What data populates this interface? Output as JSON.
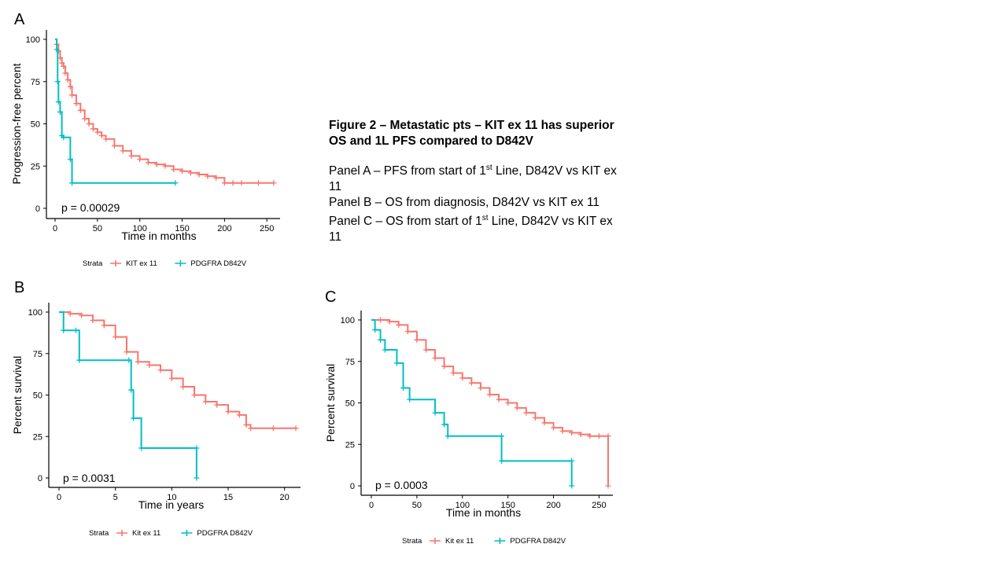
{
  "figure": {
    "title": "Figure 2 – Metastatic pts – KIT ex 11 has superior OS and 1L PFS compared to D842V",
    "captions": [
      {
        "pre": "Panel A – PFS from start of 1",
        "sup": "st",
        "post": " Line, D842V vs KIT ex 11"
      },
      {
        "pre": "Panel B – OS from diagnosis, D842V vs KIT ex 11",
        "sup": "",
        "post": ""
      },
      {
        "pre": "Panel C – OS from start of 1",
        "sup": "st",
        "post": " Line, D842V vs KIT ex 11"
      }
    ]
  },
  "chart_data": [
    {
      "panel": "A",
      "type": "line",
      "xlabel": "Time in months",
      "ylabel": "Progression-free percent",
      "xlim": [
        0,
        260
      ],
      "ylim": [
        0,
        100
      ],
      "xticks": [
        0,
        50,
        100,
        150,
        200,
        250
      ],
      "yticks": [
        0,
        25,
        50,
        75,
        100
      ],
      "p_value": "p = 0.00029",
      "legend_title": "Strata",
      "legend_position": "bottom",
      "series": [
        {
          "name": "KIT ex 11",
          "color": "#F8766D",
          "x": [
            0,
            2,
            4,
            6,
            8,
            10,
            12,
            15,
            18,
            20,
            25,
            30,
            35,
            40,
            45,
            50,
            55,
            60,
            70,
            80,
            90,
            100,
            110,
            120,
            130,
            140,
            150,
            160,
            170,
            180,
            190,
            200,
            210,
            220,
            240,
            258
          ],
          "y": [
            100,
            97,
            93,
            89,
            86,
            84,
            80,
            76,
            72,
            67,
            62,
            58,
            53,
            50,
            47,
            45,
            43,
            41,
            37,
            34,
            31,
            29,
            27,
            26,
            25,
            23,
            22,
            21,
            20,
            19,
            18,
            15,
            15,
            15,
            15,
            15
          ]
        },
        {
          "name": "PDGFRA D842V",
          "color": "#00BFC4",
          "x": [
            0,
            2,
            3,
            4,
            6,
            8,
            10,
            18,
            20,
            142
          ],
          "y": [
            100,
            94,
            75,
            63,
            57,
            43,
            42,
            29,
            15,
            15
          ]
        }
      ]
    },
    {
      "panel": "B",
      "type": "line",
      "xlabel": "Time in years",
      "ylabel": "Percent survival",
      "xlim": [
        0,
        21
      ],
      "ylim": [
        0,
        100
      ],
      "xticks": [
        0,
        5,
        10,
        15,
        20
      ],
      "yticks": [
        0,
        25,
        50,
        75,
        100
      ],
      "p_value": "p = 0.0031",
      "legend_title": "Strata",
      "legend_position": "bottom",
      "series": [
        {
          "name": "Kit ex 11",
          "color": "#F8766D",
          "x": [
            0,
            1,
            2,
            3,
            4,
            5,
            6,
            7,
            8,
            9,
            10,
            11,
            12,
            13,
            14,
            15,
            16,
            16.6,
            17,
            19,
            21
          ],
          "y": [
            100,
            99,
            98,
            95,
            92,
            85,
            76,
            70,
            68,
            65,
            60,
            55,
            50,
            46,
            44,
            40,
            38,
            32,
            30,
            30,
            30
          ]
        },
        {
          "name": "PDGFRA D842V",
          "color": "#00BFC4",
          "x": [
            0,
            0.4,
            1.5,
            1.8,
            6.2,
            6.4,
            6.6,
            7.3,
            12.2,
            12.2
          ],
          "y": [
            100,
            89,
            89,
            71,
            71,
            53,
            36,
            18,
            18,
            0
          ]
        }
      ]
    },
    {
      "panel": "C",
      "type": "line",
      "xlabel": "Time in months",
      "ylabel": "Percent survival",
      "xlim": [
        0,
        260
      ],
      "ylim": [
        0,
        100
      ],
      "xticks": [
        0,
        50,
        100,
        150,
        200,
        250
      ],
      "yticks": [
        0,
        25,
        50,
        75,
        100
      ],
      "p_value": "p = 0.0003",
      "legend_title": "Strata",
      "legend_position": "bottom",
      "series": [
        {
          "name": "Kit ex 11",
          "color": "#F8766D",
          "x": [
            0,
            10,
            20,
            30,
            40,
            50,
            60,
            70,
            80,
            90,
            100,
            110,
            120,
            130,
            140,
            150,
            160,
            170,
            180,
            190,
            200,
            210,
            220,
            230,
            240,
            250,
            260,
            260
          ],
          "y": [
            100,
            100,
            99,
            97,
            93,
            88,
            82,
            77,
            72,
            68,
            65,
            62,
            59,
            55,
            52,
            50,
            47,
            44,
            41,
            38,
            35,
            33,
            32,
            31,
            30,
            30,
            30,
            0
          ]
        },
        {
          "name": "PDGFRA D842V",
          "color": "#00BFC4",
          "x": [
            0,
            4,
            10,
            15,
            28,
            35,
            42,
            70,
            80,
            84,
            143,
            143,
            220,
            220
          ],
          "y": [
            100,
            94,
            88,
            82,
            74,
            59,
            52,
            44,
            37,
            30,
            30,
            15,
            15,
            0
          ]
        }
      ]
    }
  ]
}
